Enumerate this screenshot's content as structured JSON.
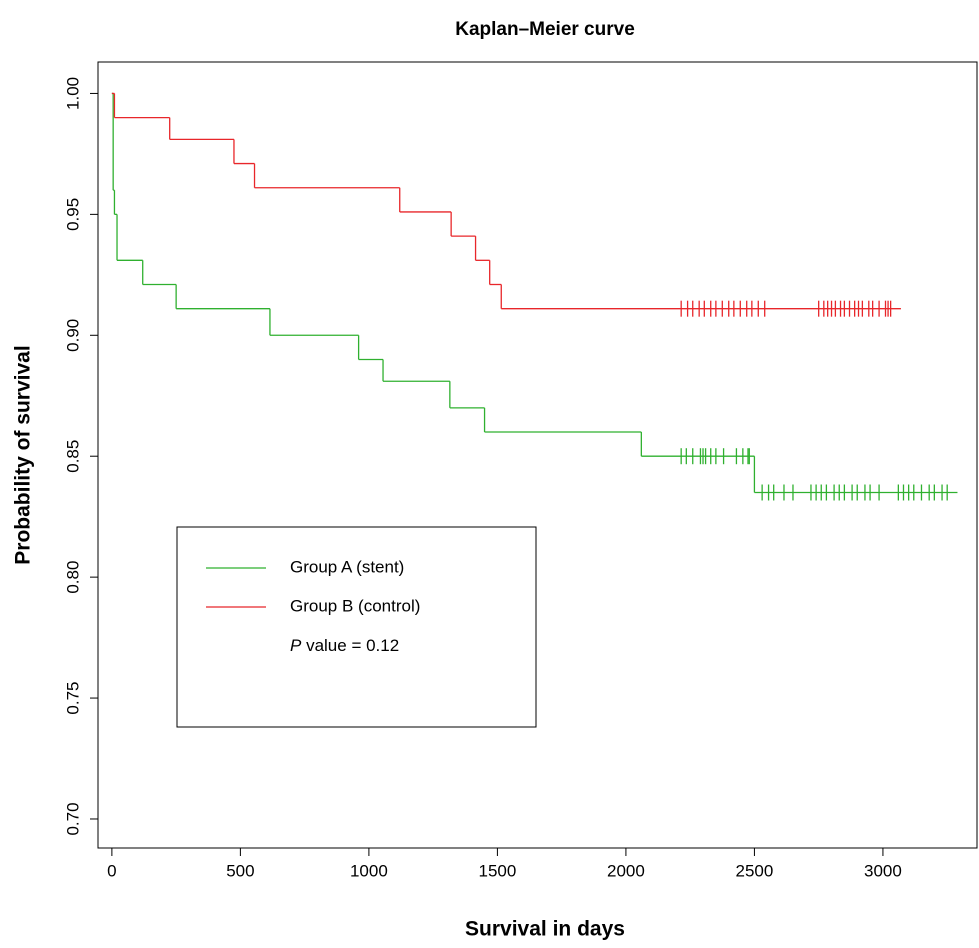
{
  "chart_data": {
    "type": "step",
    "title": "Kaplan–Meier curve",
    "x_label": "Survival in days",
    "y_label": "Probability of survival",
    "xlim": [
      -54,
      3366
    ],
    "ylim": [
      0.688,
      1.013
    ],
    "xticks": [
      0,
      500,
      1000,
      1500,
      2000,
      2500,
      3000
    ],
    "yticks": [
      {
        "value": 0.7,
        "label": "0.70"
      },
      0.75,
      {
        "value": 0.8,
        "label": "0.80"
      },
      0.85,
      {
        "value": 0.9,
        "label": "0.90"
      },
      0.95,
      {
        "value": 1,
        "label": "1.00"
      }
    ],
    "series": [
      {
        "name": "Group A (stent)",
        "color": "#2fb02f",
        "x": [
          0,
          5,
          10,
          20,
          120,
          250,
          615,
          960,
          1055,
          1315,
          1450,
          2060,
          2500,
          3290
        ],
        "values": [
          1.0,
          0.96,
          0.95,
          0.931,
          0.921,
          0.911,
          0.9,
          0.89,
          0.881,
          0.87,
          0.86,
          0.85,
          0.835,
          0.835
        ],
        "censor_x": [
          2215,
          2235,
          2260,
          2290,
          2300,
          2310,
          2330,
          2350,
          2380,
          2430,
          2455,
          2475,
          2480,
          2530,
          2555,
          2575,
          2615,
          2650,
          2720,
          2740,
          2760,
          2780,
          2810,
          2830,
          2850,
          2880,
          2900,
          2930,
          2950,
          2985,
          3060,
          3080,
          3100,
          3120,
          3150,
          3180,
          3200,
          3230,
          3250
        ],
        "censor_y": [
          0.85,
          0.85,
          0.85,
          0.85,
          0.85,
          0.85,
          0.85,
          0.85,
          0.85,
          0.85,
          0.85,
          0.85,
          0.85,
          0.835,
          0.835,
          0.835,
          0.835,
          0.835,
          0.835,
          0.835,
          0.835,
          0.835,
          0.835,
          0.835,
          0.835,
          0.835,
          0.835,
          0.835,
          0.835,
          0.835,
          0.835,
          0.835,
          0.835,
          0.835,
          0.835,
          0.835,
          0.835,
          0.835,
          0.835
        ]
      },
      {
        "name": "Group B (control)",
        "color": "#e8262a",
        "x": [
          0,
          10,
          225,
          475,
          555,
          1120,
          1320,
          1415,
          1470,
          1515,
          3070
        ],
        "values": [
          1.0,
          0.99,
          0.981,
          0.971,
          0.961,
          0.951,
          0.941,
          0.931,
          0.921,
          0.911,
          0.911
        ],
        "censor_x": [
          2215,
          2240,
          2260,
          2285,
          2305,
          2330,
          2350,
          2375,
          2400,
          2420,
          2445,
          2470,
          2490,
          2515,
          2540,
          2750,
          2770,
          2785,
          2800,
          2815,
          2835,
          2850,
          2870,
          2890,
          2905,
          2920,
          2945,
          2960,
          2985,
          3010,
          3020,
          3030
        ],
        "censor_y": [
          0.911,
          0.911,
          0.911,
          0.911,
          0.911,
          0.911,
          0.911,
          0.911,
          0.911,
          0.911,
          0.911,
          0.911,
          0.911,
          0.911,
          0.911,
          0.911,
          0.911,
          0.911,
          0.911,
          0.911,
          0.911,
          0.911,
          0.911,
          0.911,
          0.911,
          0.911,
          0.911,
          0.911,
          0.911,
          0.911,
          0.911,
          0.911
        ]
      }
    ],
    "annotation": {
      "italic": "P",
      "text": "value = 0.12"
    }
  }
}
